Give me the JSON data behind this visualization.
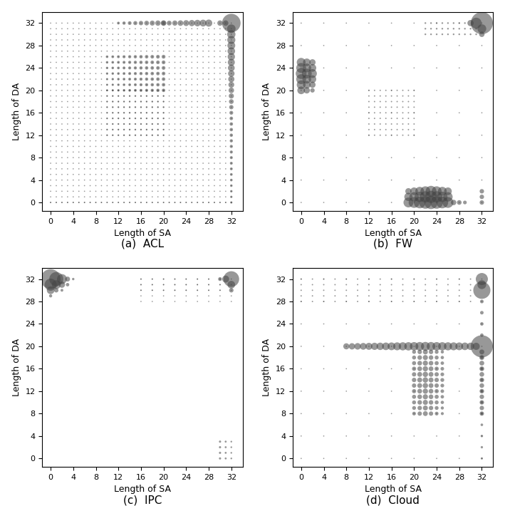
{
  "xlabel": "Length of SA",
  "ylabel": "Length of DA",
  "xlim": [
    -1.5,
    34
  ],
  "ylim": [
    -1.5,
    34
  ],
  "xticks": [
    0,
    4,
    8,
    12,
    16,
    20,
    24,
    28,
    32
  ],
  "yticks": [
    0,
    4,
    8,
    12,
    16,
    20,
    24,
    28,
    32
  ],
  "dot_color": "#444444",
  "alpha": 0.55,
  "figsize": [
    7.09,
    7.1
  ],
  "dpi": 100,
  "captions": [
    "(a)  ACL",
    "(b)  FW",
    "(c)  IPC",
    "(d)  Cloud"
  ]
}
